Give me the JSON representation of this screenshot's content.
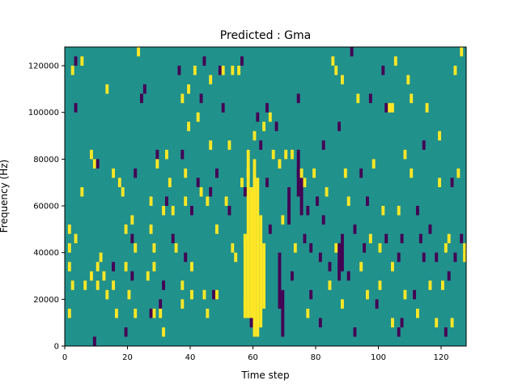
{
  "chart_data": {
    "type": "heatmap",
    "title": "Predicted : Gma",
    "xlabel": "Time step",
    "ylabel": "Frequency (Hz)",
    "xlim": [
      0,
      128
    ],
    "ylim": [
      0,
      128000
    ],
    "x_ticks": [
      0,
      20,
      40,
      60,
      80,
      100,
      120
    ],
    "x_tick_labels": [
      "0",
      "20",
      "40",
      "60",
      "80",
      "100",
      "120"
    ],
    "y_ticks": [
      0,
      20000,
      40000,
      60000,
      80000,
      100000,
      120000
    ],
    "y_tick_labels": [
      "0",
      "20000",
      "40000",
      "60000",
      "80000",
      "100000",
      "120000"
    ],
    "grid": false,
    "legend": "none",
    "colormap": "viridis",
    "value_levels": {
      "low": -1,
      "mid": 0,
      "high": 1
    },
    "level_colors": {
      "low": "#440154",
      "mid": "#21918c",
      "high": "#fde725"
    },
    "background_value": 0,
    "freq_bin_hz": 4000,
    "cells_note_unit": "each cell: time step index t, frequency bin start f (Hz), value v",
    "cells": [
      {
        "t": 2,
        "f": 116000,
        "v": 1
      },
      {
        "t": 3,
        "f": 120000,
        "v": -1
      },
      {
        "t": 5,
        "f": 120000,
        "v": 1
      },
      {
        "t": 3,
        "f": 100000,
        "v": -1
      },
      {
        "t": 1,
        "f": 48000,
        "v": 1
      },
      {
        "t": 1,
        "f": 40000,
        "v": 1
      },
      {
        "t": 1,
        "f": 32000,
        "v": 1
      },
      {
        "t": 1,
        "f": 12000,
        "v": 1
      },
      {
        "t": 2,
        "f": 24000,
        "v": 1
      },
      {
        "t": 3,
        "f": 44000,
        "v": 1
      },
      {
        "t": 5,
        "f": 64000,
        "v": 1
      },
      {
        "t": 6,
        "f": 24000,
        "v": 1
      },
      {
        "t": 8,
        "f": 28000,
        "v": 1
      },
      {
        "t": 8,
        "f": 80000,
        "v": 1
      },
      {
        "t": 9,
        "f": 76000,
        "v": 1
      },
      {
        "t": 9,
        "f": 0,
        "v": -1
      },
      {
        "t": 10,
        "f": 32000,
        "v": 1
      },
      {
        "t": 10,
        "f": 24000,
        "v": 1
      },
      {
        "t": 10,
        "f": 76000,
        "v": -1
      },
      {
        "t": 11,
        "f": 36000,
        "v": 1
      },
      {
        "t": 12,
        "f": 28000,
        "v": 1
      },
      {
        "t": 13,
        "f": 20000,
        "v": 1
      },
      {
        "t": 13,
        "f": 108000,
        "v": 1
      },
      {
        "t": 15,
        "f": 72000,
        "v": 1
      },
      {
        "t": 15,
        "f": 32000,
        "v": -1
      },
      {
        "t": 15,
        "f": 24000,
        "v": 1
      },
      {
        "t": 16,
        "f": 12000,
        "v": 1
      },
      {
        "t": 17,
        "f": 68000,
        "v": 1
      },
      {
        "t": 18,
        "f": 64000,
        "v": 1
      },
      {
        "t": 19,
        "f": 32000,
        "v": 1
      },
      {
        "t": 19,
        "f": 4000,
        "v": -1
      },
      {
        "t": 19,
        "f": 48000,
        "v": 1
      },
      {
        "t": 20,
        "f": 20000,
        "v": 1
      },
      {
        "t": 21,
        "f": 52000,
        "v": 1
      },
      {
        "t": 21,
        "f": 44000,
        "v": -1
      },
      {
        "t": 21,
        "f": 28000,
        "v": -1
      },
      {
        "t": 22,
        "f": 12000,
        "v": 1
      },
      {
        "t": 22,
        "f": 40000,
        "v": 1
      },
      {
        "t": 22,
        "f": 72000,
        "v": -1
      },
      {
        "t": 23,
        "f": 124000,
        "v": 1
      },
      {
        "t": 24,
        "f": 104000,
        "v": -1
      },
      {
        "t": 25,
        "f": 108000,
        "v": -1
      },
      {
        "t": 26,
        "f": 28000,
        "v": 1
      },
      {
        "t": 27,
        "f": 48000,
        "v": 1
      },
      {
        "t": 27,
        "f": 60000,
        "v": 1
      },
      {
        "t": 27,
        "f": 12000,
        "v": -1
      },
      {
        "t": 28,
        "f": 40000,
        "v": 1
      },
      {
        "t": 28,
        "f": 32000,
        "v": 1
      },
      {
        "t": 28,
        "f": 12000,
        "v": 1
      },
      {
        "t": 29,
        "f": 80000,
        "v": -1
      },
      {
        "t": 29,
        "f": 76000,
        "v": 1
      },
      {
        "t": 30,
        "f": 16000,
        "v": -1
      },
      {
        "t": 30,
        "f": 12000,
        "v": 1
      },
      {
        "t": 31,
        "f": 56000,
        "v": 1
      },
      {
        "t": 31,
        "f": 24000,
        "v": -1
      },
      {
        "t": 31,
        "f": 4000,
        "v": 1
      },
      {
        "t": 32,
        "f": 80000,
        "v": 1
      },
      {
        "t": 32,
        "f": 60000,
        "v": -1
      },
      {
        "t": 33,
        "f": 68000,
        "v": 1
      },
      {
        "t": 34,
        "f": 56000,
        "v": 1
      },
      {
        "t": 34,
        "f": 44000,
        "v": -1
      },
      {
        "t": 35,
        "f": 40000,
        "v": 1
      },
      {
        "t": 36,
        "f": 116000,
        "v": -1
      },
      {
        "t": 37,
        "f": 104000,
        "v": 1
      },
      {
        "t": 37,
        "f": 80000,
        "v": -1
      },
      {
        "t": 38,
        "f": 72000,
        "v": 1
      },
      {
        "t": 38,
        "f": 60000,
        "v": 1
      },
      {
        "t": 38,
        "f": 36000,
        "v": -1
      },
      {
        "t": 37,
        "f": 24000,
        "v": 1
      },
      {
        "t": 37,
        "f": 16000,
        "v": 1
      },
      {
        "t": 39,
        "f": 108000,
        "v": 1
      },
      {
        "t": 39,
        "f": 92000,
        "v": 1
      },
      {
        "t": 40,
        "f": 56000,
        "v": -1
      },
      {
        "t": 40,
        "f": 32000,
        "v": 1
      },
      {
        "t": 40,
        "f": 20000,
        "v": 1
      },
      {
        "t": 41,
        "f": 116000,
        "v": 1
      },
      {
        "t": 42,
        "f": 96000,
        "v": 1
      },
      {
        "t": 42,
        "f": 68000,
        "v": -1
      },
      {
        "t": 43,
        "f": 104000,
        "v": -1
      },
      {
        "t": 43,
        "f": 64000,
        "v": 1
      },
      {
        "t": 44,
        "f": 120000,
        "v": -1
      },
      {
        "t": 44,
        "f": 20000,
        "v": 1
      },
      {
        "t": 45,
        "f": 60000,
        "v": 1
      },
      {
        "t": 45,
        "f": 12000,
        "v": 1
      },
      {
        "t": 46,
        "f": 112000,
        "v": 1
      },
      {
        "t": 46,
        "f": 84000,
        "v": 1
      },
      {
        "t": 46,
        "f": 64000,
        "v": -1
      },
      {
        "t": 47,
        "f": 20000,
        "v": -1
      },
      {
        "t": 48,
        "f": 72000,
        "v": -1
      },
      {
        "t": 48,
        "f": 48000,
        "v": 1
      },
      {
        "t": 48,
        "f": 20000,
        "v": 1
      },
      {
        "t": 49,
        "f": 116000,
        "v": -1
      },
      {
        "t": 50,
        "f": 116000,
        "v": 1
      },
      {
        "t": 50,
        "f": 100000,
        "v": -1
      },
      {
        "t": 51,
        "f": 60000,
        "v": 1
      },
      {
        "t": 52,
        "f": 84000,
        "v": 1
      },
      {
        "t": 52,
        "f": 56000,
        "v": -1
      },
      {
        "t": 53,
        "f": 116000,
        "v": 1
      },
      {
        "t": 53,
        "f": 40000,
        "v": 1
      },
      {
        "t": 54,
        "f": 36000,
        "v": 1
      },
      {
        "t": 55,
        "f": 116000,
        "v": 1
      },
      {
        "t": 56,
        "f": 120000,
        "v": -1
      },
      {
        "t": 56,
        "f": 68000,
        "v": 1
      },
      {
        "t": 57,
        "f": 64000,
        "v": -1
      },
      {
        "t": 57,
        "f": 44000,
        "v": 1
      },
      {
        "t": 57,
        "f": 16000,
        "v": 1
      },
      {
        "t": 58,
        "f": 72000,
        "v": 1
      },
      {
        "t": 59,
        "f": 8000,
        "v": -1
      },
      {
        "t": 60,
        "f": 88000,
        "v": 1
      },
      {
        "t": 61,
        "f": 96000,
        "v": -1
      },
      {
        "t": 62,
        "f": 84000,
        "v": -1
      },
      {
        "t": 63,
        "f": 92000,
        "v": 1
      },
      {
        "t": 64,
        "f": 100000,
        "v": -1
      },
      {
        "t": 64,
        "f": 68000,
        "v": -1
      },
      {
        "t": 65,
        "f": 96000,
        "v": 1
      },
      {
        "t": 65,
        "f": 48000,
        "v": -1
      },
      {
        "t": 66,
        "f": 80000,
        "v": 1
      },
      {
        "t": 67,
        "f": 92000,
        "v": -1
      },
      {
        "t": 68,
        "f": 76000,
        "v": 1
      },
      {
        "t": 69,
        "f": 52000,
        "v": 1
      },
      {
        "t": 70,
        "f": 80000,
        "v": 1
      },
      {
        "t": 71,
        "f": 56000,
        "v": -1
      },
      {
        "t": 72,
        "f": 80000,
        "v": 1
      },
      {
        "t": 72,
        "f": 28000,
        "v": -1
      },
      {
        "t": 73,
        "f": 40000,
        "v": 1
      },
      {
        "t": 74,
        "f": 104000,
        "v": -1
      },
      {
        "t": 74,
        "f": 72000,
        "v": -1
      },
      {
        "t": 75,
        "f": 72000,
        "v": 1
      },
      {
        "t": 76,
        "f": 68000,
        "v": 1
      },
      {
        "t": 76,
        "f": 44000,
        "v": -1
      },
      {
        "t": 77,
        "f": 56000,
        "v": -1
      },
      {
        "t": 77,
        "f": 12000,
        "v": 1
      },
      {
        "t": 78,
        "f": 40000,
        "v": -1
      },
      {
        "t": 78,
        "f": 20000,
        "v": -1
      },
      {
        "t": 79,
        "f": 72000,
        "v": 1
      },
      {
        "t": 80,
        "f": 60000,
        "v": -1
      },
      {
        "t": 81,
        "f": 8000,
        "v": -1
      },
      {
        "t": 81,
        "f": 36000,
        "v": -1
      },
      {
        "t": 82,
        "f": 84000,
        "v": -1
      },
      {
        "t": 82,
        "f": 52000,
        "v": -1
      },
      {
        "t": 83,
        "f": 64000,
        "v": 1
      },
      {
        "t": 84,
        "f": 24000,
        "v": 1
      },
      {
        "t": 84,
        "f": 32000,
        "v": -1
      },
      {
        "t": 85,
        "f": 120000,
        "v": 1
      },
      {
        "t": 86,
        "f": 116000,
        "v": 1
      },
      {
        "t": 86,
        "f": 40000,
        "v": 1
      },
      {
        "t": 87,
        "f": 92000,
        "v": -1
      },
      {
        "t": 88,
        "f": 112000,
        "v": 1
      },
      {
        "t": 88,
        "f": 16000,
        "v": 1
      },
      {
        "t": 89,
        "f": 72000,
        "v": 1
      },
      {
        "t": 90,
        "f": 60000,
        "v": 1
      },
      {
        "t": 90,
        "f": 28000,
        "v": -1
      },
      {
        "t": 91,
        "f": 124000,
        "v": -1
      },
      {
        "t": 92,
        "f": 48000,
        "v": -1
      },
      {
        "t": 92,
        "f": 4000,
        "v": -1
      },
      {
        "t": 93,
        "f": 104000,
        "v": 1
      },
      {
        "t": 94,
        "f": 72000,
        "v": -1
      },
      {
        "t": 94,
        "f": 32000,
        "v": 1
      },
      {
        "t": 95,
        "f": 40000,
        "v": -1
      },
      {
        "t": 96,
        "f": 60000,
        "v": -1
      },
      {
        "t": 96,
        "f": 20000,
        "v": 1
      },
      {
        "t": 97,
        "f": 104000,
        "v": -1
      },
      {
        "t": 97,
        "f": 44000,
        "v": 1
      },
      {
        "t": 98,
        "f": 76000,
        "v": 1
      },
      {
        "t": 99,
        "f": 16000,
        "v": -1
      },
      {
        "t": 100,
        "f": 40000,
        "v": 1
      },
      {
        "t": 100,
        "f": 24000,
        "v": 1
      },
      {
        "t": 101,
        "f": 56000,
        "v": 1
      },
      {
        "t": 101,
        "f": 116000,
        "v": -1
      },
      {
        "t": 102,
        "f": 100000,
        "v": -1
      },
      {
        "t": 102,
        "f": 44000,
        "v": -1
      },
      {
        "t": 104,
        "f": 32000,
        "v": 1
      },
      {
        "t": 104,
        "f": 8000,
        "v": 1
      },
      {
        "t": 105,
        "f": 120000,
        "v": 1
      },
      {
        "t": 106,
        "f": 56000,
        "v": 1
      },
      {
        "t": 106,
        "f": 36000,
        "v": -1
      },
      {
        "t": 106,
        "f": 4000,
        "v": -1
      },
      {
        "t": 107,
        "f": 44000,
        "v": -1
      },
      {
        "t": 107,
        "f": 8000,
        "v": -1
      },
      {
        "t": 108,
        "f": 80000,
        "v": 1
      },
      {
        "t": 108,
        "f": 20000,
        "v": 1
      },
      {
        "t": 109,
        "f": 112000,
        "v": 1
      },
      {
        "t": 110,
        "f": 104000,
        "v": 1
      },
      {
        "t": 110,
        "f": 72000,
        "v": 1
      },
      {
        "t": 111,
        "f": 20000,
        "v": -1
      },
      {
        "t": 112,
        "f": 56000,
        "v": -1
      },
      {
        "t": 112,
        "f": 12000,
        "v": 1
      },
      {
        "t": 113,
        "f": 44000,
        "v": -1
      },
      {
        "t": 114,
        "f": 36000,
        "v": -1
      },
      {
        "t": 114,
        "f": 84000,
        "v": -1
      },
      {
        "t": 115,
        "f": 100000,
        "v": 1
      },
      {
        "t": 116,
        "f": 48000,
        "v": -1
      },
      {
        "t": 116,
        "f": 24000,
        "v": 1
      },
      {
        "t": 118,
        "f": 8000,
        "v": 1
      },
      {
        "t": 118,
        "f": 36000,
        "v": -1
      },
      {
        "t": 119,
        "f": 68000,
        "v": 1
      },
      {
        "t": 119,
        "f": 88000,
        "v": 1
      },
      {
        "t": 120,
        "f": 24000,
        "v": 1
      },
      {
        "t": 121,
        "f": 40000,
        "v": 1
      },
      {
        "t": 121,
        "f": 4000,
        "v": -1
      },
      {
        "t": 122,
        "f": 44000,
        "v": 1
      },
      {
        "t": 122,
        "f": 28000,
        "v": -1
      },
      {
        "t": 123,
        "f": 68000,
        "v": -1
      },
      {
        "t": 123,
        "f": 8000,
        "v": 1
      },
      {
        "t": 124,
        "f": 36000,
        "v": -1
      },
      {
        "t": 124,
        "f": 116000,
        "v": 1
      },
      {
        "t": 125,
        "f": 72000,
        "v": 1
      },
      {
        "t": 126,
        "f": 124000,
        "v": 1
      },
      {
        "t": 126,
        "f": 44000,
        "v": -1
      },
      {
        "t": 127,
        "f": 40000,
        "v": 1
      },
      {
        "t": 127,
        "f": 36000,
        "v": 1
      }
    ],
    "columns": [
      {
        "t": 57,
        "v": 1,
        "f_from": 12000,
        "f_to": 48000
      },
      {
        "t": 58,
        "v": 1,
        "f_from": 12000,
        "f_to": 84000
      },
      {
        "t": 59,
        "v": 1,
        "f_from": 12000,
        "f_to": 68000
      },
      {
        "t": 60,
        "v": 1,
        "f_from": 4000,
        "f_to": 80000
      },
      {
        "t": 61,
        "v": 1,
        "f_from": 4000,
        "f_to": 72000
      },
      {
        "t": 62,
        "v": 1,
        "f_from": 8000,
        "f_to": 56000
      },
      {
        "t": 63,
        "v": 1,
        "f_from": 16000,
        "f_to": 44000
      },
      {
        "t": 68,
        "v": -1,
        "f_from": 16000,
        "f_to": 40000
      },
      {
        "t": 69,
        "v": -1,
        "f_from": 4000,
        "f_to": 24000
      },
      {
        "t": 71,
        "v": -1,
        "f_from": 52000,
        "f_to": 68000
      },
      {
        "t": 74,
        "v": -1,
        "f_from": 64000,
        "f_to": 84000
      },
      {
        "t": 75,
        "v": -1,
        "f_from": 56000,
        "f_to": 72000
      },
      {
        "t": 87,
        "v": -1,
        "f_from": 28000,
        "f_to": 44000
      },
      {
        "t": 88,
        "v": -1,
        "f_from": 32000,
        "f_to": 48000
      },
      {
        "t": 103,
        "v": 1,
        "f_from": 100000,
        "f_to": 104000
      },
      {
        "t": 104,
        "v": 1,
        "f_from": 100000,
        "f_to": 104000
      }
    ]
  }
}
